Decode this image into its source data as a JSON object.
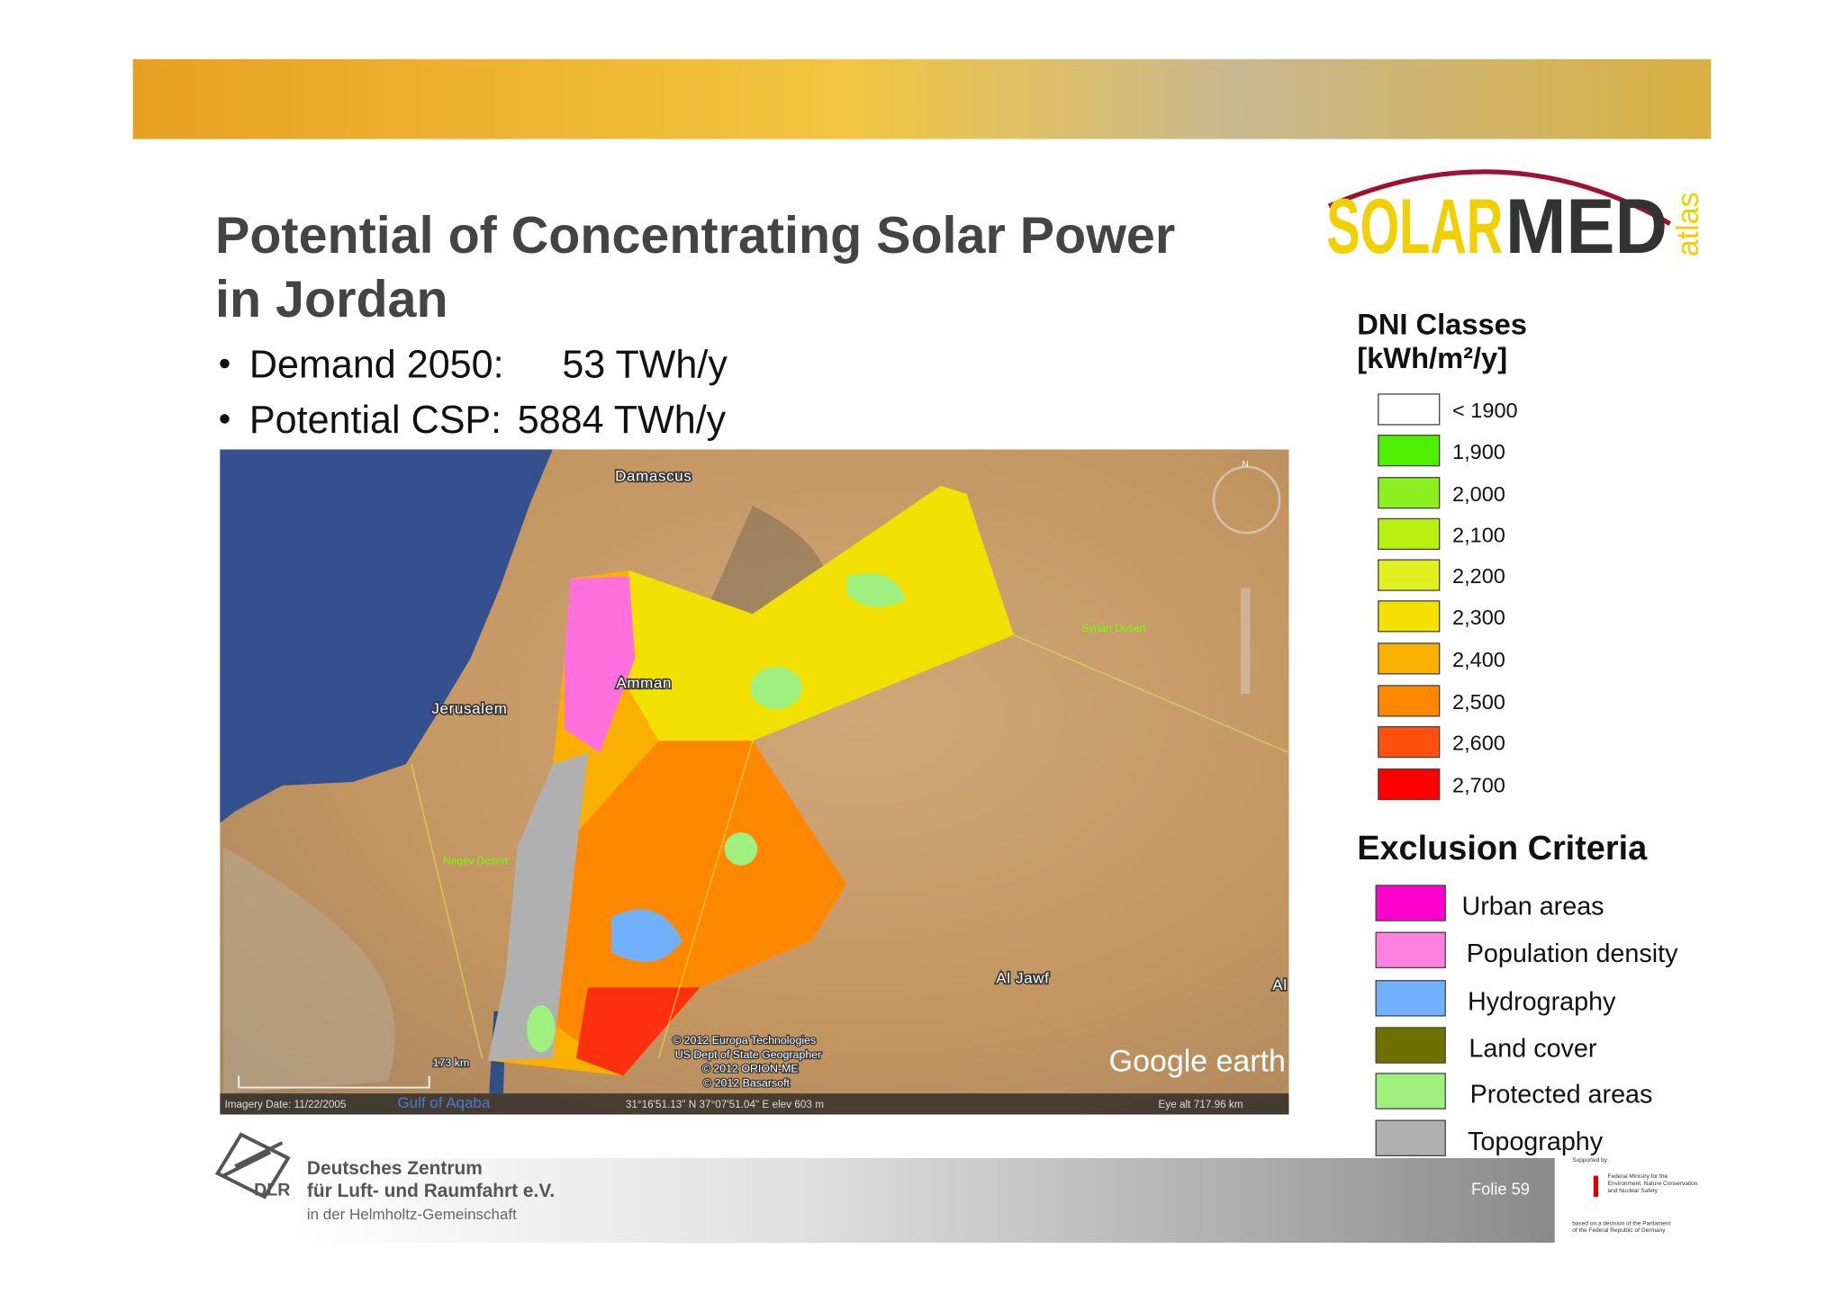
{
  "header": {
    "title_lines": [
      "Potential of Concentrating Solar Power",
      "in Jordan"
    ],
    "bullets": [
      {
        "label": "Demand 2050:",
        "value": "53 TWh/y"
      },
      {
        "label": "Potential CSP:",
        "value": "5884 TWh/y"
      }
    ]
  },
  "logo": {
    "word_1": "SOLAR",
    "word_2": "MED",
    "sub": "atlas"
  },
  "dni_legend": {
    "title_lines": [
      "DNI Classes",
      "[kWh/m²/y]"
    ],
    "items": [
      {
        "label": "< 1900",
        "color": "#ffffff"
      },
      {
        "label": "1,900",
        "color": "#4cf000"
      },
      {
        "label": "2,000",
        "color": "#8cf020"
      },
      {
        "label": "2,100",
        "color": "#b8f010"
      },
      {
        "label": "2,200",
        "color": "#e0f020"
      },
      {
        "label": "2,300",
        "color": "#f5e000"
      },
      {
        "label": "2,400",
        "color": "#fab000"
      },
      {
        "label": "2,500",
        "color": "#ff8800"
      },
      {
        "label": "2,600",
        "color": "#ff5010"
      },
      {
        "label": "2,700",
        "color": "#ff0000"
      }
    ]
  },
  "exclusion_legend": {
    "title": "Exclusion Criteria",
    "items": [
      {
        "label": "Urban areas",
        "color": "#ff00cc"
      },
      {
        "label": "Population density",
        "color": "#ff80e0"
      },
      {
        "label": "Hydrography",
        "color": "#70b0ff"
      },
      {
        "label": "Land cover",
        "color": "#707000"
      },
      {
        "label": "Protected areas",
        "color": "#a0f080"
      },
      {
        "label": "Topography",
        "color": "#b0b0b0"
      }
    ]
  },
  "map": {
    "places": {
      "damascus": "Damascus",
      "amman": "Amman",
      "jerusalem": "Jerusalem",
      "syrian_desert": "Syrian Desert",
      "negev_desert": "Negev Desert",
      "al_jawf": "Al Jawf",
      "al_edge": "Al",
      "gulf": "Gulf of Aqaba"
    },
    "north": "N",
    "scale": "173 km",
    "copyright": [
      "© 2012 Europa Technologies",
      "US Dept of State Geographer",
      "© 2012 ORION-ME",
      "© 2012 Basarsoft"
    ],
    "brand": "Google earth",
    "status": {
      "imagery": "Imagery Date: 11/22/2005",
      "coords": "31°16'51.13\" N  37°07'51.04\" E  elev  603 m",
      "eye": "Eye alt  717.96 km"
    }
  },
  "footer": {
    "org_lines": [
      "Deutsches Zentrum",
      "für Luft- und Raumfahrt e.V.",
      "in der Helmholtz-Gemeinschaft"
    ],
    "org_short": "DLR",
    "slide": "Folie 59",
    "support": [
      "Supported by:",
      "Federal Ministry for the",
      "Environment, Nature Conservation",
      "and Nuclear Safety",
      "based on a decision of the Parliament",
      "of the Federal Republic of Germany"
    ]
  }
}
